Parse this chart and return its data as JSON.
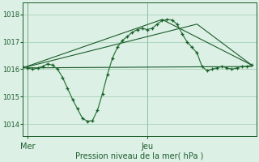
{
  "xlabel": "Pression niveau de la mer( hPa )",
  "bg_color": "#ddf0e6",
  "grid_color": "#99ccaa",
  "line_color_dark": "#1a5c2a",
  "line_color_mid": "#2d7a3a",
  "yticks": [
    1014,
    1015,
    1016,
    1017,
    1018
  ],
  "ylim": [
    1013.55,
    1018.45
  ],
  "xlim": [
    0,
    47
  ],
  "xtick_labels": [
    "Mer",
    "Jeu"
  ],
  "xtick_positions": [
    1,
    25
  ],
  "x_vals": [
    0,
    1,
    2,
    3,
    4,
    5,
    6,
    7,
    8,
    9,
    10,
    11,
    12,
    13,
    14,
    15,
    16,
    17,
    18,
    19,
    20,
    21,
    22,
    23,
    24,
    25,
    26,
    27,
    28,
    29,
    30,
    31,
    32,
    33,
    34,
    35,
    36,
    37,
    38,
    39,
    40,
    41,
    42,
    43,
    44,
    45,
    46
  ],
  "y_main": [
    1016.1,
    1016.05,
    1016.0,
    1016.05,
    1016.1,
    1016.2,
    1016.15,
    1016.0,
    1015.7,
    1015.3,
    1014.9,
    1014.55,
    1014.2,
    1014.1,
    1014.12,
    1014.5,
    1015.1,
    1015.8,
    1016.4,
    1016.8,
    1017.05,
    1017.2,
    1017.35,
    1017.45,
    1017.5,
    1017.45,
    1017.5,
    1017.65,
    1017.78,
    1017.82,
    1017.8,
    1017.65,
    1017.3,
    1017.0,
    1016.8,
    1016.6,
    1016.1,
    1015.95,
    1016.0,
    1016.05,
    1016.1,
    1016.05,
    1016.0,
    1016.05,
    1016.1,
    1016.1,
    1016.15
  ],
  "trend_line1_x": [
    0,
    35,
    36,
    46
  ],
  "trend_line1_y": [
    1016.05,
    1016.05,
    1016.1,
    1016.15
  ],
  "trend_line2_x": [
    0,
    28,
    36,
    46
  ],
  "trend_line2_y": [
    1016.05,
    1017.8,
    1016.1,
    1016.15
  ],
  "trend_line3_x": [
    0,
    35,
    36,
    46
  ],
  "trend_line3_y": [
    1016.05,
    1017.65,
    1016.1,
    1016.15
  ],
  "jeu_vline_x": 25,
  "mer_vline_x": 1
}
